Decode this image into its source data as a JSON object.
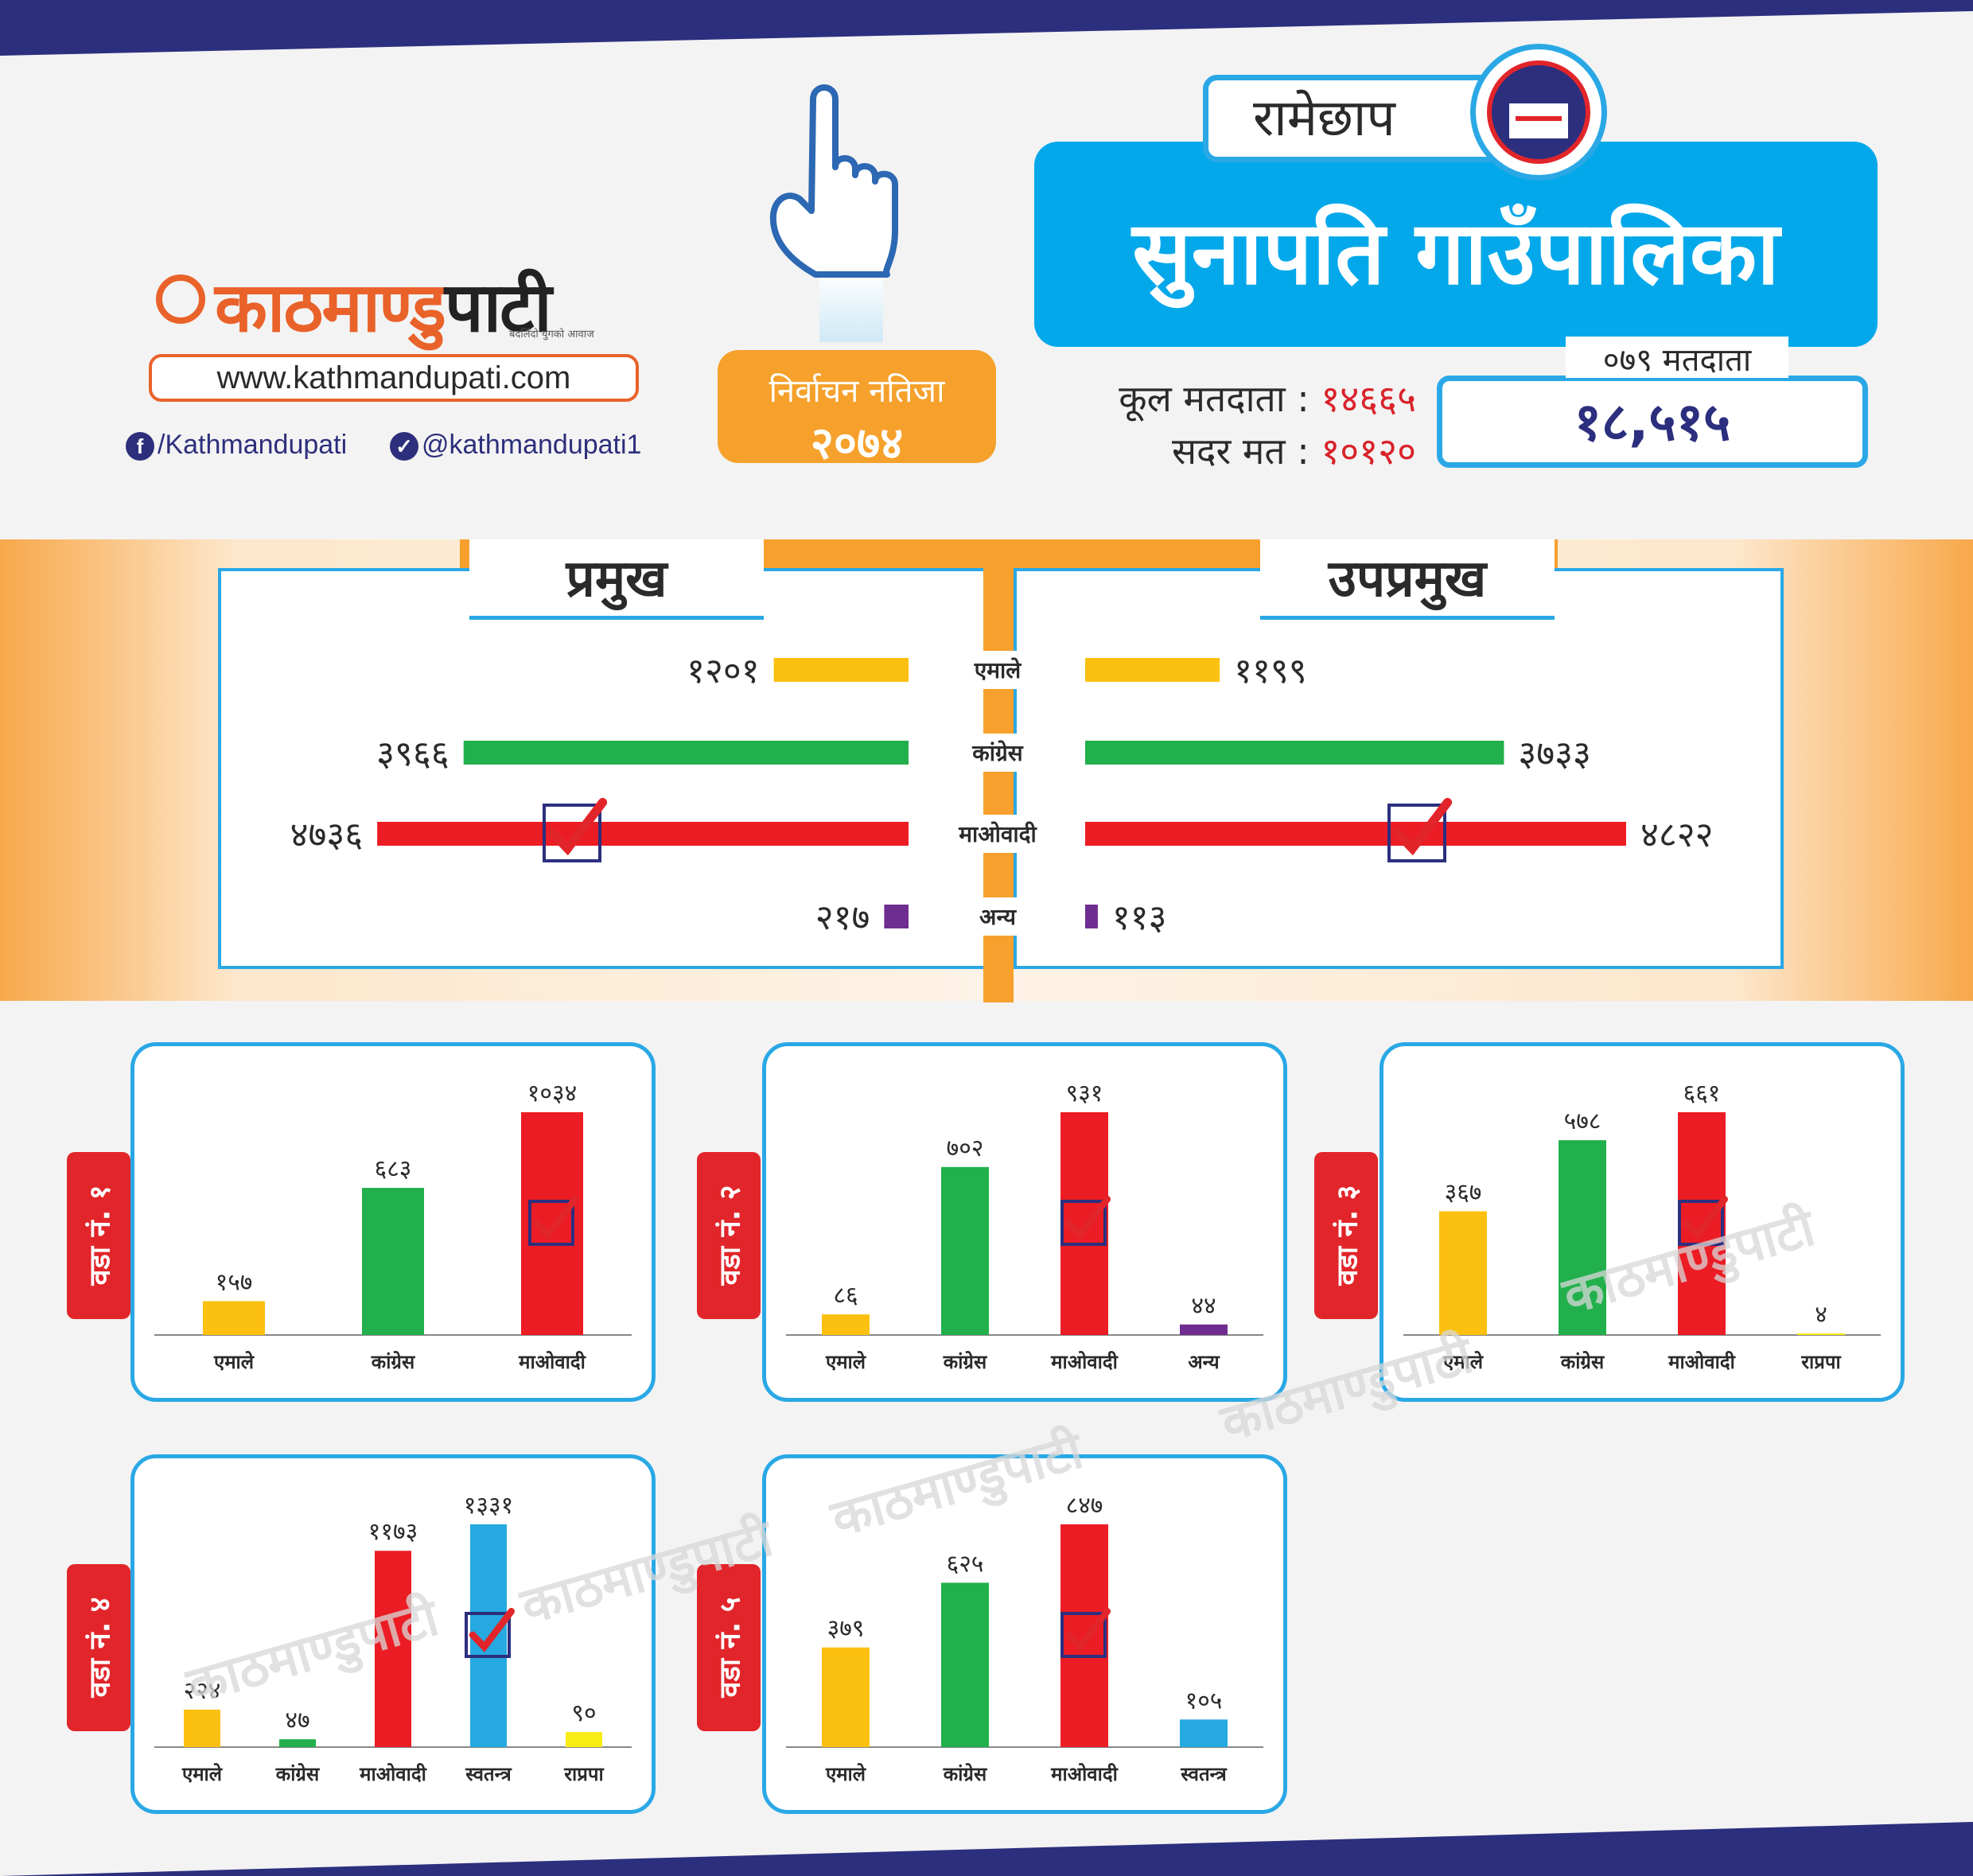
{
  "header": {
    "district": "रामेछाप",
    "municipality": "सुनापति गाउँपालिका",
    "result_badge": {
      "line1": "निर्वाचन नतिजा",
      "line2": "२०७४"
    },
    "total_voters_label": "कूल मतदाता :",
    "total_voters_value": "१४६६५",
    "valid_votes_label": "सदर मत :",
    "valid_votes_value": "१०१२०",
    "voters_079_label": "०७९ मतदाता",
    "voters_079_value": "१८,५१५"
  },
  "brand": {
    "logo_part1": "काठमाण्डु",
    "logo_part2": "पाटी",
    "tagline": "बदलिँदो युगको आवाज",
    "url": "www.kathmandupati.com",
    "facebook": "/Kathmandupati",
    "twitter": "@kathmandupati1",
    "watermark": "काठमाण्डुपाटी"
  },
  "colors": {
    "एमाले": "#fcc010",
    "कांग्रेस": "#22b04c",
    "माओवादी": "#ec1c24",
    "अन्य": "#6f2d91",
    "स्वतन्त्र": "#26a9e0",
    "राप्रपा": "#f7ec13"
  },
  "chart_data": [
    {
      "type": "bar",
      "id": "mayor",
      "title": "प्रमुख",
      "categories": [
        "एमाले",
        "कांग्रेस",
        "माओवादी",
        "अन्य"
      ],
      "values": [
        1201,
        3966,
        4736,
        217
      ],
      "labels": [
        "१२०१",
        "३९६६",
        "४७३६",
        "२१७"
      ],
      "winner": "माओवादी"
    },
    {
      "type": "bar",
      "id": "deputy",
      "title": "उपप्रमुख",
      "categories": [
        "एमाले",
        "कांग्रेस",
        "माओवादी",
        "अन्य"
      ],
      "values": [
        1199,
        3733,
        4822,
        113
      ],
      "labels": [
        "११९९",
        "३७३३",
        "४८२२",
        "११३"
      ],
      "winner": "माओवादी"
    },
    {
      "type": "bar",
      "id": "ward1",
      "title": "वडा नं. १",
      "categories": [
        "एमाले",
        "कांग्रेस",
        "माओवादी"
      ],
      "values": [
        157,
        683,
        1034
      ],
      "labels": [
        "१५७",
        "६८३",
        "१०३४"
      ],
      "winner": "माओवादी"
    },
    {
      "type": "bar",
      "id": "ward2",
      "title": "वडा नं. २",
      "categories": [
        "एमाले",
        "कांग्रेस",
        "माओवादी",
        "अन्य"
      ],
      "values": [
        86,
        702,
        931,
        44
      ],
      "labels": [
        "८६",
        "७०२",
        "९३१",
        "४४"
      ],
      "winner": "माओवादी"
    },
    {
      "type": "bar",
      "id": "ward3",
      "title": "वडा नं. ३",
      "categories": [
        "एमाले",
        "कांग्रेस",
        "माओवादी",
        "राप्रपा"
      ],
      "values": [
        367,
        578,
        661,
        4
      ],
      "labels": [
        "३६७",
        "५७८",
        "६६१",
        "४"
      ],
      "winner": "माओवादी"
    },
    {
      "type": "bar",
      "id": "ward4",
      "title": "वडा नं. ४",
      "categories": [
        "एमाले",
        "कांग्रेस",
        "माओवादी",
        "स्वतन्त्र",
        "राप्रपा"
      ],
      "values": [
        224,
        47,
        1173,
        1331,
        90
      ],
      "labels": [
        "२२४",
        "४७",
        "११७३",
        "१३३१",
        "९०"
      ],
      "winner": "स्वतन्त्र"
    },
    {
      "type": "bar",
      "id": "ward5",
      "title": "वडा नं. ५",
      "categories": [
        "एमाले",
        "कांग्रेस",
        "माओवादी",
        "स्वतन्त्र"
      ],
      "values": [
        379,
        625,
        847,
        105
      ],
      "labels": [
        "३७९",
        "६२५",
        "८४७",
        "१०५"
      ],
      "winner": "माओवादी"
    }
  ]
}
